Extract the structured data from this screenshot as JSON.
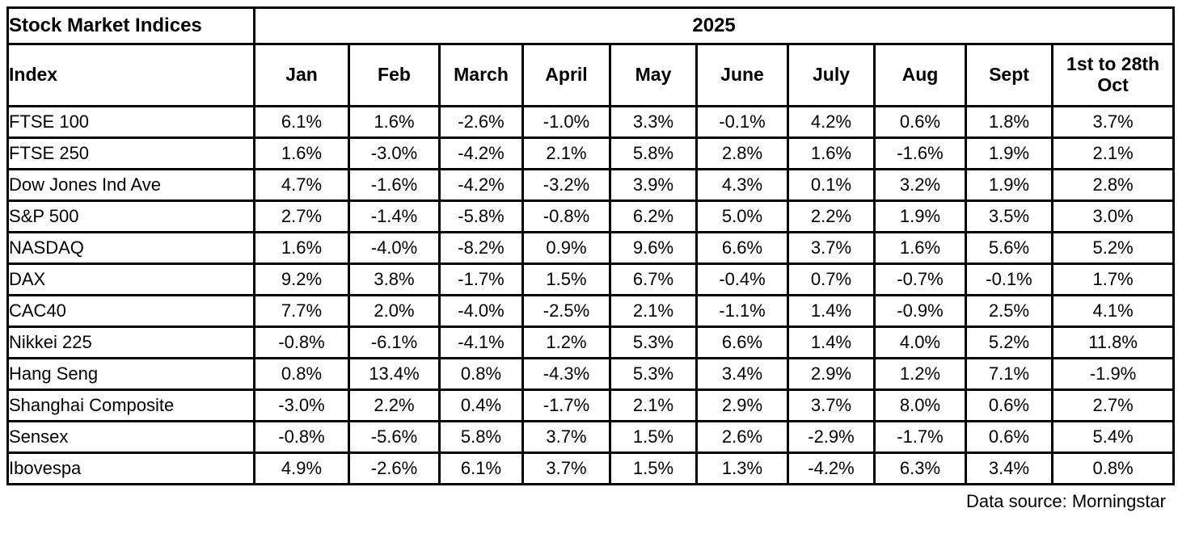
{
  "table": {
    "corner_title": "Stock Market Indices",
    "year_header": "2025",
    "index_header": "Index",
    "month_headers": [
      "Jan",
      "Feb",
      "March",
      "April",
      "May",
      "June",
      "July",
      "Aug",
      "Sept",
      "1st to 28th Oct"
    ],
    "rows": [
      {
        "index": "FTSE 100",
        "values": [
          "6.1%",
          "1.6%",
          "-2.6%",
          "-1.0%",
          "3.3%",
          "-0.1%",
          "4.2%",
          "0.6%",
          "1.8%",
          "3.7%"
        ]
      },
      {
        "index": "FTSE 250",
        "values": [
          "1.6%",
          "-3.0%",
          "-4.2%",
          "2.1%",
          "5.8%",
          "2.8%",
          "1.6%",
          "-1.6%",
          "1.9%",
          "2.1%"
        ]
      },
      {
        "index": "Dow Jones Ind Ave",
        "values": [
          "4.7%",
          "-1.6%",
          "-4.2%",
          "-3.2%",
          "3.9%",
          "4.3%",
          "0.1%",
          "3.2%",
          "1.9%",
          "2.8%"
        ]
      },
      {
        "index": "S&P 500",
        "values": [
          "2.7%",
          "-1.4%",
          "-5.8%",
          "-0.8%",
          "6.2%",
          "5.0%",
          "2.2%",
          "1.9%",
          "3.5%",
          "3.0%"
        ]
      },
      {
        "index": "NASDAQ",
        "values": [
          "1.6%",
          "-4.0%",
          "-8.2%",
          "0.9%",
          "9.6%",
          "6.6%",
          "3.7%",
          "1.6%",
          "5.6%",
          "5.2%"
        ]
      },
      {
        "index": "DAX",
        "values": [
          "9.2%",
          "3.8%",
          "-1.7%",
          "1.5%",
          "6.7%",
          "-0.4%",
          "0.7%",
          "-0.7%",
          "-0.1%",
          "1.7%"
        ]
      },
      {
        "index": "CAC40",
        "values": [
          "7.7%",
          "2.0%",
          "-4.0%",
          "-2.5%",
          "2.1%",
          "-1.1%",
          "1.4%",
          "-0.9%",
          "2.5%",
          "4.1%"
        ]
      },
      {
        "index": "Nikkei 225",
        "values": [
          "-0.8%",
          "-6.1%",
          "-4.1%",
          "1.2%",
          "5.3%",
          "6.6%",
          "1.4%",
          "4.0%",
          "5.2%",
          "11.8%"
        ]
      },
      {
        "index": "Hang Seng",
        "values": [
          "0.8%",
          "13.4%",
          "0.8%",
          "-4.3%",
          "5.3%",
          "3.4%",
          "2.9%",
          "1.2%",
          "7.1%",
          "-1.9%"
        ]
      },
      {
        "index": "Shanghai Composite",
        "values": [
          "-3.0%",
          "2.2%",
          "0.4%",
          "-1.7%",
          "2.1%",
          "2.9%",
          "3.7%",
          "8.0%",
          "0.6%",
          "2.7%"
        ]
      },
      {
        "index": "Sensex",
        "values": [
          "-0.8%",
          "-5.6%",
          "5.8%",
          "3.7%",
          "1.5%",
          "2.6%",
          "-2.9%",
          "-1.7%",
          "0.6%",
          "5.4%"
        ]
      },
      {
        "index": "Ibovespa",
        "values": [
          "4.9%",
          "-2.6%",
          "6.1%",
          "3.7%",
          "1.5%",
          "1.3%",
          "-4.2%",
          "6.3%",
          "3.4%",
          "0.8%"
        ]
      }
    ]
  },
  "footer": {
    "source": "Data source: Morningstar"
  }
}
